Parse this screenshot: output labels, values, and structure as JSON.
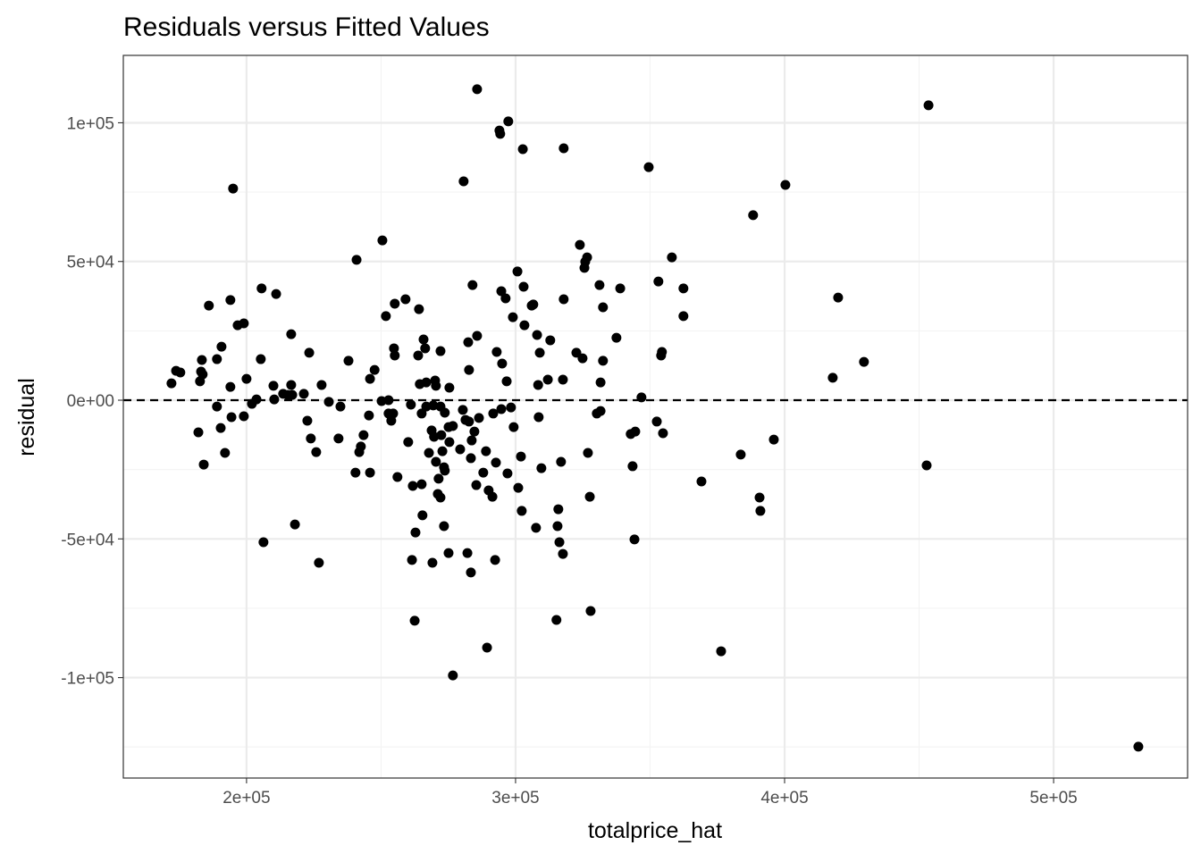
{
  "chart_data": {
    "type": "scatter",
    "title": "Residuals versus Fitted Values",
    "xlabel": "totalprice_hat",
    "ylabel": "residual",
    "xlim": [
      154200,
      549800
    ],
    "ylim": [
      -136200,
      124300
    ],
    "x_ticks": [
      200000,
      300000,
      400000,
      500000
    ],
    "x_tick_labels": [
      "2e+05",
      "3e+05",
      "4e+05",
      "5e+05"
    ],
    "y_ticks": [
      100000,
      50000,
      0,
      -50000,
      -100000
    ],
    "y_tick_labels": [
      "1e+05",
      "5e+04",
      "0e+00",
      "-5e+04",
      "-1e+05"
    ],
    "grid": true,
    "reference_line": {
      "y": 0,
      "style": "dashed"
    },
    "colors": {
      "points": "#000000",
      "grid": "#ebebeb",
      "panel_border": "#333333"
    },
    "points": [
      [
        172100.0,
        6100.0
      ],
      [
        173800.0,
        10600.0
      ],
      [
        175400.0,
        10000.0
      ],
      [
        182700.0,
        6800.0
      ],
      [
        183100.0,
        10300.0
      ],
      [
        183400.0,
        14500.0
      ],
      [
        183700.0,
        9300.0
      ],
      [
        182100.0,
        -11600.0
      ],
      [
        184100.0,
        -23200.0
      ],
      [
        186000.0,
        34100.0
      ],
      [
        189000.0,
        14800.0
      ],
      [
        189000.0,
        -2300.0
      ],
      [
        190700.0,
        19300.0
      ],
      [
        190400.0,
        -10000.0
      ],
      [
        192000.0,
        -19000.0
      ],
      [
        194000.0,
        36100.0
      ],
      [
        194000.0,
        4800.0
      ],
      [
        194400.0,
        -6100.0
      ],
      [
        195000.0,
        76300.0
      ],
      [
        196700.0,
        27000.0
      ],
      [
        199000.0,
        27700.0
      ],
      [
        199000.0,
        -5800.0
      ],
      [
        200000.0,
        7700.0
      ],
      [
        202000.0,
        -1300.0
      ],
      [
        203700.0,
        300.0
      ],
      [
        205300.0,
        14800.0
      ],
      [
        205600.0,
        40300.0
      ],
      [
        206300.0,
        -51200.0
      ],
      [
        210000.0,
        5200.0
      ],
      [
        210300.0,
        300.0
      ],
      [
        211000.0,
        38300.0
      ],
      [
        213600.0,
        2300.0
      ],
      [
        215300.0,
        1900.0
      ],
      [
        216600.0,
        23800.0
      ],
      [
        216600.0,
        5500.0
      ],
      [
        217000.0,
        1900.0
      ],
      [
        218000.0,
        -44800.0
      ],
      [
        221300.0,
        2300.0
      ],
      [
        222600.0,
        -7400.0
      ],
      [
        223300.0,
        17100.0
      ],
      [
        223900.0,
        -13800.0
      ],
      [
        225900.0,
        -18700.0
      ],
      [
        226900.0,
        -58600.0
      ],
      [
        227900.0,
        5500.0
      ],
      [
        230600.0,
        -600.0
      ],
      [
        234900.0,
        -2300.0
      ],
      [
        234200.0,
        -13800.0
      ],
      [
        237900.0,
        14200.0
      ],
      [
        240500.0,
        -26100.0
      ],
      [
        240900.0,
        50600.0
      ],
      [
        241900.0,
        -18700.0
      ],
      [
        242500.0,
        -16700.0
      ],
      [
        243500.0,
        -12600.0
      ],
      [
        245500.0,
        -5500.0
      ],
      [
        245900.0,
        -26100.0
      ],
      [
        245900.0,
        7700.0
      ],
      [
        247600.0,
        10900.0
      ],
      [
        250200.0,
        -300.0
      ],
      [
        250500.0,
        57600.0
      ],
      [
        251800.0,
        30300.0
      ],
      [
        252800.0,
        0
      ],
      [
        252800.0,
        -4800.0
      ],
      [
        253800.0,
        -7400.0
      ],
      [
        254500.0,
        -4800.0
      ],
      [
        254800.0,
        18700.0
      ],
      [
        255100.0,
        16100.0
      ],
      [
        255100.0,
        34800.0
      ],
      [
        256100.0,
        -27700.0
      ],
      [
        259100.0,
        36400.0
      ],
      [
        260100.0,
        -15100.0
      ],
      [
        261100.0,
        -1600.0
      ],
      [
        261500.0,
        -57600.0
      ],
      [
        261800.0,
        -30900.0
      ],
      [
        262500.0,
        -79500.0
      ],
      [
        262800.0,
        -47700.0
      ],
      [
        263800.0,
        16100.0
      ],
      [
        264100.0,
        32800.0
      ],
      [
        264400.0,
        5800.0
      ],
      [
        265100.0,
        -30300.0
      ],
      [
        265100.0,
        -4800.0
      ],
      [
        265400.0,
        -41500.0
      ],
      [
        265800.0,
        21900.0
      ],
      [
        266400.0,
        18700.0
      ],
      [
        266800.0,
        6400.0
      ],
      [
        266800.0,
        -2300.0
      ],
      [
        267800.0,
        -19000.0
      ],
      [
        268800.0,
        -10900.0
      ],
      [
        269400.0,
        -1900.0
      ],
      [
        269100.0,
        -58600.0
      ],
      [
        269700.0,
        -13200.0
      ],
      [
        270100.0,
        7100.0
      ],
      [
        270400.0,
        -22200.0
      ],
      [
        270400.0,
        5200.0
      ],
      [
        271100.0,
        -33800.0
      ],
      [
        271400.0,
        -28300.0
      ],
      [
        272100.0,
        -2300.0
      ],
      [
        272100.0,
        -35100.0
      ],
      [
        272100.0,
        17700.0
      ],
      [
        272400.0,
        -12600.0
      ],
      [
        272800.0,
        -18400.0
      ],
      [
        273400.0,
        -24200.0
      ],
      [
        273400.0,
        -45400.0
      ],
      [
        273700.0,
        -4500.0
      ],
      [
        273700.0,
        -25400.0
      ],
      [
        275100.0,
        -9700.0
      ],
      [
        275400.0,
        -15100.0
      ],
      [
        275400.0,
        4500.0
      ],
      [
        275100.0,
        -55100.0
      ],
      [
        276700.0,
        -99200.0
      ],
      [
        276700.0,
        -9300.0
      ],
      [
        279400.0,
        -17700.0
      ],
      [
        280400.0,
        -3500.0
      ],
      [
        280700.0,
        78900.0
      ],
      [
        281400.0,
        -7100.0
      ],
      [
        282100.0,
        -55100.0
      ],
      [
        282400.0,
        20900.0
      ],
      [
        282700.0,
        10900.0
      ],
      [
        282700.0,
        -7700.0
      ],
      [
        283400.0,
        -20900.0
      ],
      [
        283400.0,
        -62100.0
      ],
      [
        283700.0,
        -14500.0
      ],
      [
        284000.0,
        41500.0
      ],
      [
        284700.0,
        -11300.0
      ],
      [
        285400.0,
        -30600.0
      ],
      [
        285700.0,
        23200.0
      ],
      [
        285700.0,
        112100.0
      ],
      [
        286400.0,
        -6400.0
      ],
      [
        288000.0,
        -26100.0
      ],
      [
        289000.0,
        -18400.0
      ],
      [
        289400.0,
        -89200.0
      ],
      [
        290000.0,
        -32500.0
      ],
      [
        291400.0,
        -34800.0
      ],
      [
        291700.0,
        -4800.0
      ],
      [
        292400.0,
        -57600.0
      ],
      [
        292700.0,
        -22500.0
      ],
      [
        293000.0,
        17400.0
      ],
      [
        294000.0,
        97200.0
      ],
      [
        294300.0,
        96000.0
      ],
      [
        294700.0,
        -3200.0
      ],
      [
        294700.0,
        39300.0
      ],
      [
        295000.0,
        13200.0
      ],
      [
        296300.0,
        36700.0
      ],
      [
        296700.0,
        6800.0
      ],
      [
        297000.0,
        -26400.0
      ],
      [
        297300.0,
        100500.0
      ],
      [
        298300.0,
        -2600.0
      ],
      [
        299000.0,
        29900.0
      ],
      [
        299300.0,
        -9700.0
      ],
      [
        300700.0,
        46400.0
      ],
      [
        301000.0,
        -31600.0
      ],
      [
        302000.0,
        -20300.0
      ],
      [
        302300.0,
        -39900.0
      ],
      [
        302700.0,
        90500.0
      ],
      [
        303000.0,
        40900.0
      ],
      [
        303300.0,
        27000.0
      ],
      [
        306000.0,
        34100.0
      ],
      [
        306600.0,
        34500.0
      ],
      [
        307600.0,
        -46000.0
      ],
      [
        308000.0,
        23500.0
      ],
      [
        308400.0,
        5500.0
      ],
      [
        308600.0,
        -6100.0
      ],
      [
        309000.0,
        17100.0
      ],
      [
        309600.0,
        -24500.0
      ],
      [
        312000.0,
        7400.0
      ],
      [
        312900.0,
        21600.0
      ],
      [
        315200.0,
        -79200.0
      ],
      [
        315600.0,
        -45400.0
      ],
      [
        315900.0,
        -39300.0
      ],
      [
        316300.0,
        -51200.0
      ],
      [
        316900.0,
        -22200.0
      ],
      [
        317600.0,
        -55400.0
      ],
      [
        317600.0,
        7400.0
      ],
      [
        317900.0,
        36400.0
      ],
      [
        317900.0,
        90800.0
      ],
      [
        322600.0,
        17100.0
      ],
      [
        323900.0,
        56000.0
      ],
      [
        324900.0,
        15100.0
      ],
      [
        325600.0,
        47700.0
      ],
      [
        325900.0,
        49900.0
      ],
      [
        326600.0,
        51500.0
      ],
      [
        326900.0,
        -19000.0
      ],
      [
        327600.0,
        -34800.0
      ],
      [
        327900.0,
        -76000.0
      ],
      [
        330200.0,
        -4800.0
      ],
      [
        331200.0,
        41500.0
      ],
      [
        331600.0,
        6400.0
      ],
      [
        331600.0,
        -3900.0
      ],
      [
        332500.0,
        33500.0
      ],
      [
        332500.0,
        14200.0
      ],
      [
        337500.0,
        22500.0
      ],
      [
        338900.0,
        40300.0
      ],
      [
        342800.0,
        -12200.0
      ],
      [
        343500.0,
        -23800.0
      ],
      [
        344200.0,
        -50200.0
      ],
      [
        344500.0,
        -11300.0
      ],
      [
        346800.0,
        1000.0
      ],
      [
        349500.0,
        84000.0
      ],
      [
        352500.0,
        -7700.0
      ],
      [
        353100.0,
        42800.0
      ],
      [
        354100.0,
        16100.0
      ],
      [
        354400.0,
        17400.0
      ],
      [
        354800.0,
        -11900.0
      ],
      [
        358100.0,
        51500.0
      ],
      [
        362400.0,
        40300.0
      ],
      [
        362400.0,
        30300.0
      ],
      [
        369100.0,
        -29300.0
      ],
      [
        376400.0,
        -90500.0
      ],
      [
        383700.0,
        -19600.0
      ],
      [
        388300.0,
        66700.0
      ],
      [
        390700.0,
        -35100.0
      ],
      [
        391000.0,
        -39900.0
      ],
      [
        396000.0,
        -14200.0
      ],
      [
        400300.0,
        77600.0
      ],
      [
        417900.0,
        8100.0
      ],
      [
        419900.0,
        37000.0
      ],
      [
        429500.0,
        13800.0
      ],
      [
        452800.0,
        -23500.0
      ],
      [
        453500.0,
        106300.0
      ],
      [
        531500.0,
        -124900.0
      ]
    ]
  }
}
